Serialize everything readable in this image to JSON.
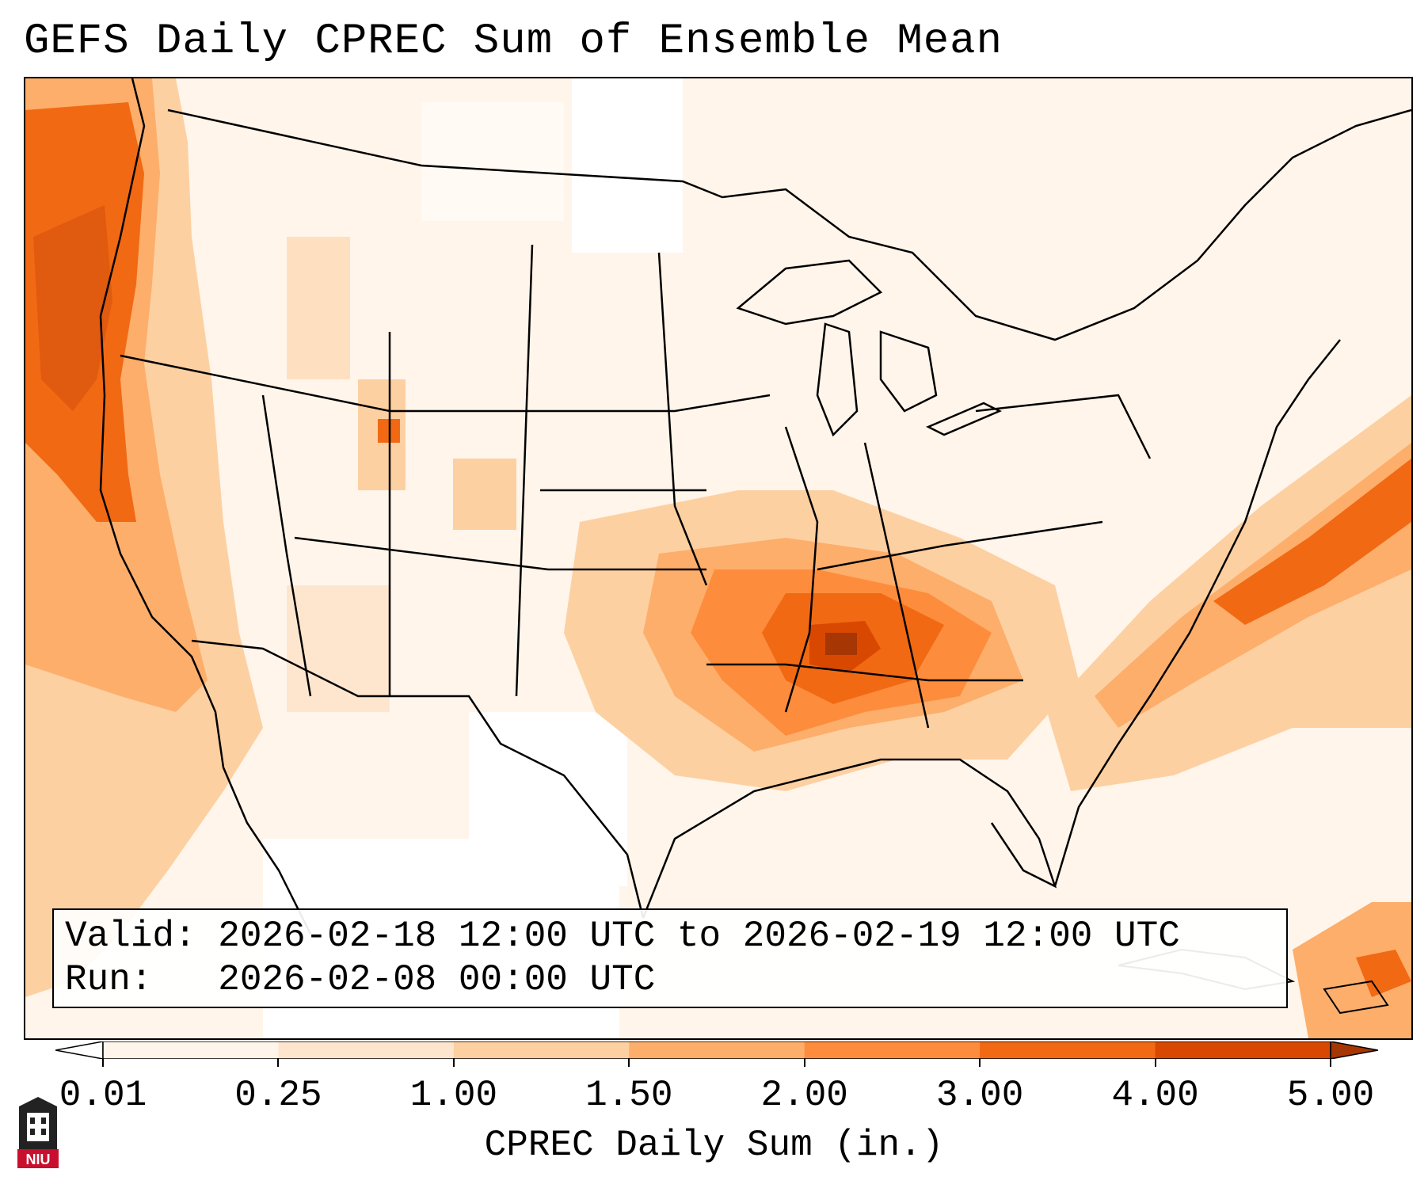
{
  "title": "GEFS Daily CPREC Sum of Ensemble Mean",
  "info": {
    "valid_line": "Valid: 2026-02-18 12:00 UTC to 2026-02-19 12:00 UTC",
    "run_line": "Run:   2026-02-08 00:00 UTC"
  },
  "colorbar": {
    "label": "CPREC Daily Sum (in.)",
    "ticks": [
      "0.01",
      "0.25",
      "1.00",
      "1.50",
      "2.00",
      "3.00",
      "4.00",
      "5.00"
    ],
    "colors": [
      "#fff5eb",
      "#fee6ce",
      "#fdd0a2",
      "#fdae6b",
      "#fd8d3c",
      "#f16913",
      "#d94801",
      "#a63603"
    ]
  },
  "logo": {
    "text": "NIU"
  },
  "icons": {
    "logo": "university-tower-logo-icon"
  }
}
